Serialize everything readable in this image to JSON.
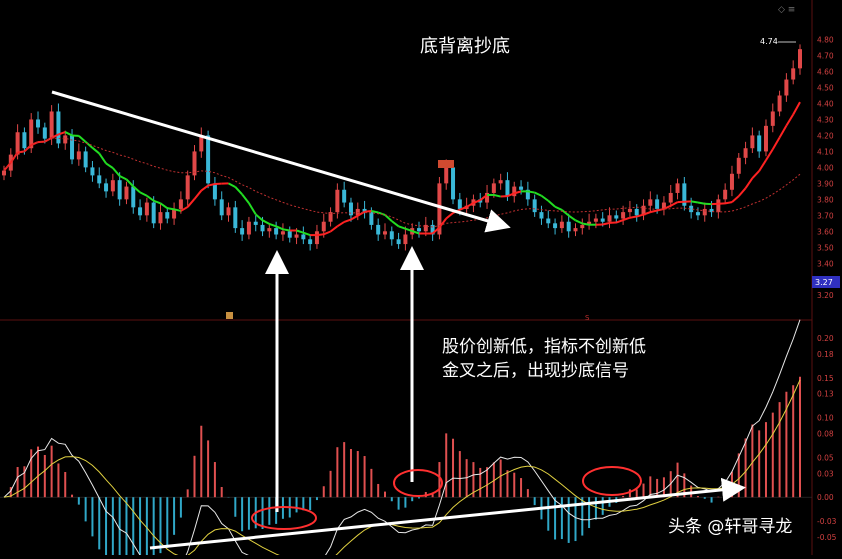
{
  "annotations": {
    "top_title": "底背离抄底",
    "caption_line1": "股价创新低，指标不创新低",
    "caption_line2": "金叉之后，出现抄底信号",
    "watermark": "头条 @轩哥寻龙",
    "last_price_label": "4.74",
    "price_tag": "3.27",
    "top_icons": "◇ ≡"
  },
  "colors": {
    "background": "#000000",
    "up_candle": "#e04848",
    "down_candle": "#3ab8d8",
    "ma_up": "#ff2222",
    "ma_down": "#22dd22",
    "ma_slow": "#c03030",
    "dif_line": "#e8e8e8",
    "dea_line": "#e0d040",
    "hist_pos": "#e05050",
    "hist_neg": "#30a8c8",
    "ellipse": "#ff3030",
    "arrow": "#ffffff",
    "axis_text": "#d04040",
    "price_tag_bg": "#3030c0"
  },
  "chart_data": [
    {
      "type": "candlestick",
      "title": "",
      "y_ticks": [
        "4.80",
        "4.70",
        "4.60",
        "4.50",
        "4.40",
        "4.30",
        "4.20",
        "4.10",
        "4.00",
        "3.90",
        "3.80",
        "3.70",
        "3.60",
        "3.50",
        "3.40",
        "3.30",
        "3.20"
      ],
      "ylim": [
        3.17,
        4.86
      ],
      "close_approx": [
        3.98,
        4.08,
        4.22,
        4.12,
        4.3,
        4.25,
        4.18,
        4.35,
        4.15,
        4.2,
        4.05,
        4.1,
        4.0,
        3.95,
        3.9,
        3.85,
        3.92,
        3.8,
        3.88,
        3.75,
        3.7,
        3.78,
        3.65,
        3.72,
        3.68,
        3.74,
        3.8,
        3.95,
        4.1,
        4.2,
        3.9,
        3.8,
        3.7,
        3.75,
        3.62,
        3.58,
        3.66,
        3.64,
        3.6,
        3.62,
        3.58,
        3.6,
        3.56,
        3.58,
        3.55,
        3.52,
        3.6,
        3.66,
        3.72,
        3.86,
        3.78,
        3.7,
        3.74,
        3.72,
        3.64,
        3.58,
        3.6,
        3.55,
        3.52,
        3.58,
        3.62,
        3.6,
        3.64,
        3.58,
        3.9,
        4.0,
        3.8,
        3.74,
        3.76,
        3.8,
        3.78,
        3.84,
        3.9,
        3.92,
        3.82,
        3.88,
        3.86,
        3.8,
        3.72,
        3.68,
        3.65,
        3.62,
        3.66,
        3.6,
        3.62,
        3.64,
        3.66,
        3.68,
        3.66,
        3.7,
        3.68,
        3.72,
        3.74,
        3.7,
        3.76,
        3.8,
        3.74,
        3.78,
        3.84,
        3.9,
        3.76,
        3.72,
        3.7,
        3.74,
        3.72,
        3.8,
        3.86,
        3.96,
        4.06,
        4.12,
        4.2,
        4.1,
        4.26,
        4.35,
        4.45,
        4.55,
        4.62,
        4.74
      ]
    },
    {
      "type": "macd",
      "title": "",
      "y_ticks": [
        "0.20",
        "0.18",
        "0.15",
        "0.13",
        "0.10",
        "0.08",
        "0.05",
        "0.03",
        "0.00",
        "-0.03",
        "-0.05"
      ],
      "ylim": [
        -0.06,
        0.21
      ]
    }
  ]
}
